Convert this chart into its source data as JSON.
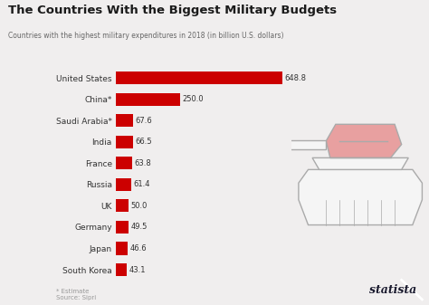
{
  "title": "The Countries With the Biggest Military Budgets",
  "subtitle": "Countries with the highest military expenditures in 2018 (in billion U.S. dollars)",
  "categories": [
    "United States",
    "China*",
    "Saudi Arabia*",
    "India",
    "France",
    "Russia",
    "UK",
    "Germany",
    "Japan",
    "South Korea"
  ],
  "values": [
    648.8,
    250.0,
    67.6,
    66.5,
    63.8,
    61.4,
    50.0,
    49.5,
    46.6,
    43.1
  ],
  "bar_color": "#cc0000",
  "bg_color": "#f0eeee",
  "title_color": "#1a1a1a",
  "subtitle_color": "#666666",
  "label_color": "#333333",
  "value_color": "#333333",
  "footer_note": "* Estimate",
  "footer_source": "Source: Sipri",
  "brand": "statista",
  "xlim": [
    0,
    720
  ],
  "tank_edge_color": "#aaaaaa",
  "tank_fill_color": "#f5f5f5",
  "turret_fill_color": "#e8a0a0"
}
